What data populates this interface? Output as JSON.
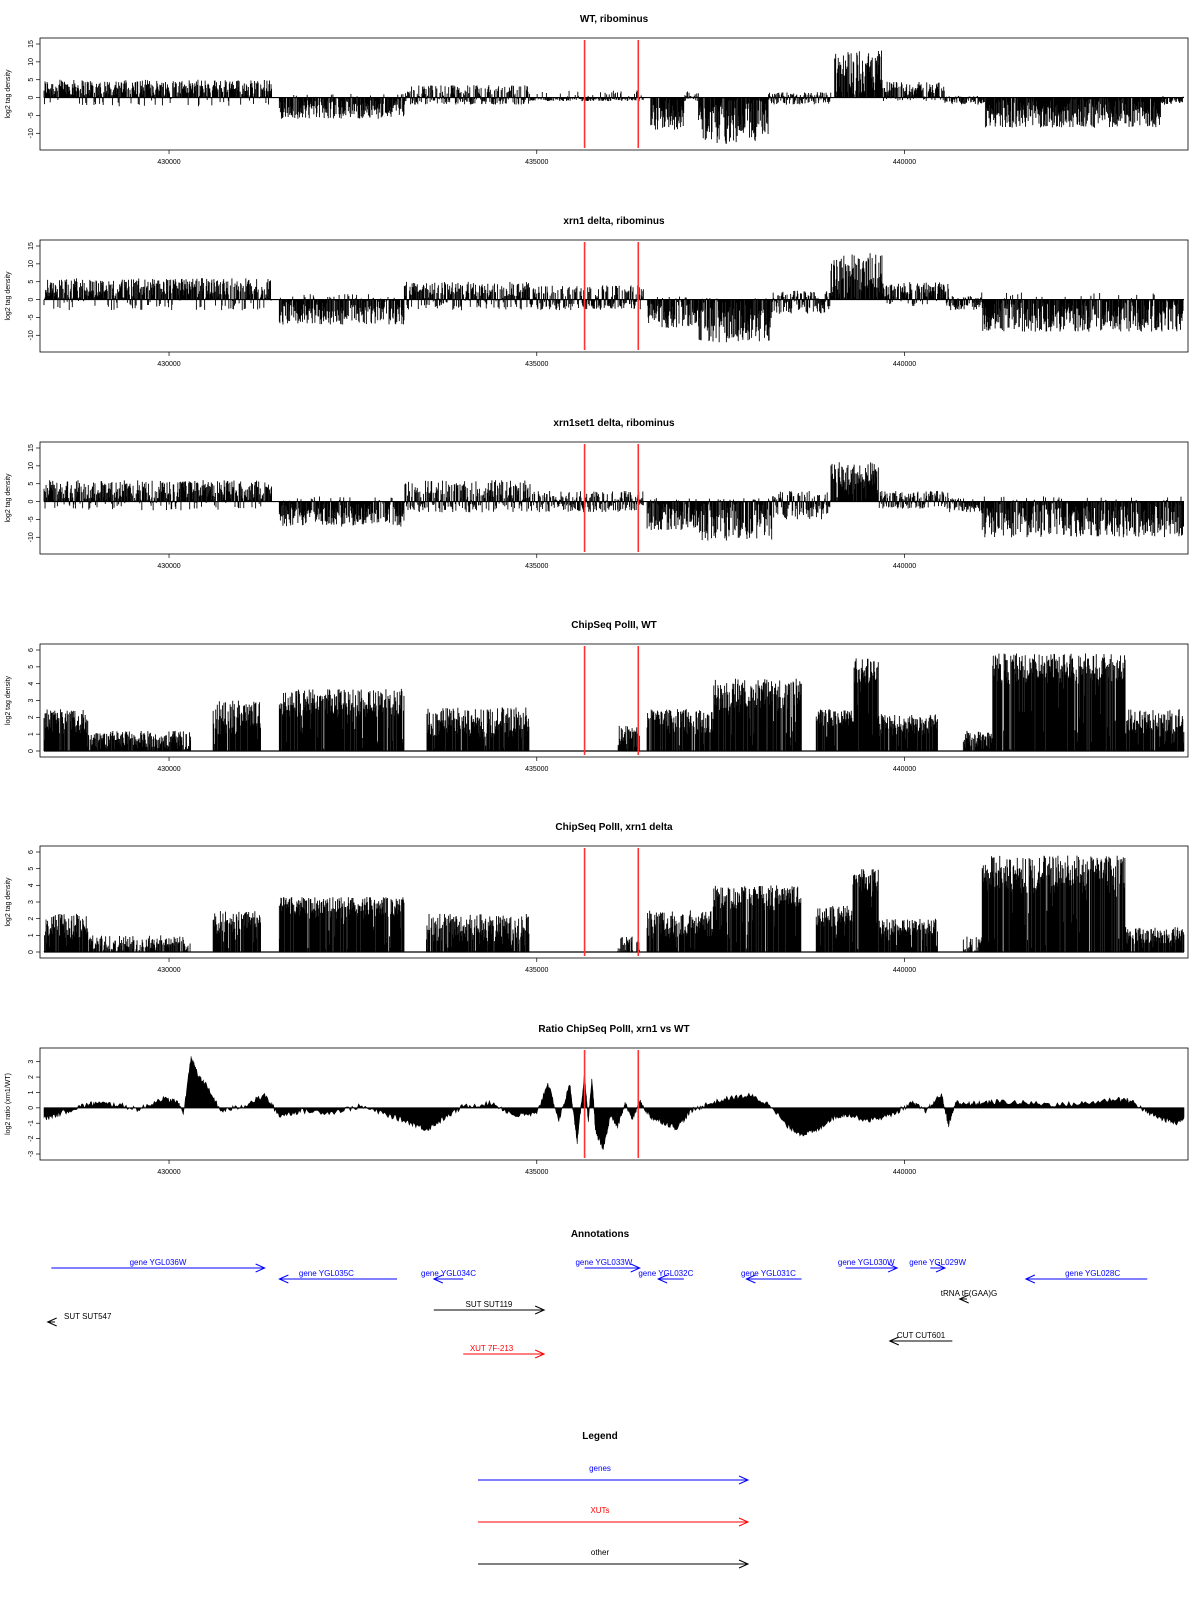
{
  "chart_data": [
    {
      "type": "bar",
      "title": "WT, ribominus",
      "ylabel": "log2 tag density",
      "xlim": [
        428300,
        443800
      ],
      "ylim": [
        -13,
        15
      ],
      "yticks": [
        "-10",
        "-5",
        "0",
        "5",
        "10",
        "15"
      ],
      "xticks": [
        "430000",
        "435000",
        "440000"
      ],
      "highlight_lines_x": [
        435650,
        436380
      ],
      "highlight_color": "#ff3333",
      "profile": [
        {
          "x0": 428300,
          "x1": 431400,
          "lo": -2.5,
          "hi": 5,
          "pos": 0.9
        },
        {
          "x0": 431500,
          "x1": 433200,
          "lo": -6,
          "hi": 1,
          "pos": 0.1
        },
        {
          "x0": 433200,
          "x1": 434900,
          "lo": -2,
          "hi": 3.5,
          "pos": 0.5
        },
        {
          "x0": 434900,
          "x1": 436450,
          "lo": -1,
          "hi": 2,
          "pos": 0.15
        },
        {
          "x0": 436550,
          "x1": 437000,
          "lo": -9,
          "hi": 0,
          "pos": 0
        },
        {
          "x0": 437000,
          "x1": 437200,
          "lo": -1,
          "hi": 2,
          "pos": 0.5
        },
        {
          "x0": 437200,
          "x1": 438150,
          "lo": -13,
          "hi": 0,
          "pos": 0
        },
        {
          "x0": 438150,
          "x1": 439000,
          "lo": -2,
          "hi": 1.5,
          "pos": 0.4
        },
        {
          "x0": 439050,
          "x1": 439700,
          "lo": 0,
          "hi": 13.5,
          "pos": 1
        },
        {
          "x0": 439700,
          "x1": 440550,
          "lo": -1,
          "hi": 4.5,
          "pos": 0.8
        },
        {
          "x0": 440550,
          "x1": 441100,
          "lo": -2,
          "hi": 0.5,
          "pos": 0.2
        },
        {
          "x0": 441100,
          "x1": 443500,
          "lo": -8.5,
          "hi": 0,
          "pos": 0
        },
        {
          "x0": 443500,
          "x1": 443800,
          "lo": -2,
          "hi": 0.5,
          "pos": 0.2
        }
      ]
    },
    {
      "type": "bar",
      "title": "xrn1 delta, ribominus",
      "ylabel": "log2 tag density",
      "xlim": [
        428300,
        443800
      ],
      "ylim": [
        -13,
        15
      ],
      "yticks": [
        "-10",
        "-5",
        "0",
        "5",
        "10",
        "15"
      ],
      "xticks": [
        "430000",
        "435000",
        "440000"
      ],
      "highlight_lines_x": [
        435650,
        436380
      ],
      "highlight_color": "#ff3333",
      "profile": [
        {
          "x0": 428300,
          "x1": 431400,
          "lo": -3,
          "hi": 6,
          "pos": 0.8
        },
        {
          "x0": 431500,
          "x1": 433200,
          "lo": -7,
          "hi": 1.5,
          "pos": 0.1
        },
        {
          "x0": 433200,
          "x1": 435000,
          "lo": -3,
          "hi": 5,
          "pos": 0.7
        },
        {
          "x0": 435000,
          "x1": 436450,
          "lo": -3,
          "hi": 4,
          "pos": 0.4
        },
        {
          "x0": 436500,
          "x1": 437200,
          "lo": -8,
          "hi": 1,
          "pos": 0.1
        },
        {
          "x0": 437200,
          "x1": 438200,
          "lo": -12,
          "hi": 0.5,
          "pos": 0.05
        },
        {
          "x0": 438200,
          "x1": 439000,
          "lo": -4,
          "hi": 2.5,
          "pos": 0.4
        },
        {
          "x0": 439000,
          "x1": 439700,
          "lo": 0,
          "hi": 13,
          "pos": 1
        },
        {
          "x0": 439700,
          "x1": 440600,
          "lo": -2,
          "hi": 5,
          "pos": 0.8
        },
        {
          "x0": 440600,
          "x1": 441050,
          "lo": -3,
          "hi": 1,
          "pos": 0.3
        },
        {
          "x0": 441050,
          "x1": 443800,
          "lo": -9,
          "hi": 2,
          "pos": 0.05
        }
      ]
    },
    {
      "type": "bar",
      "title": "xrn1set1 delta, ribominus",
      "ylabel": "log2 tag density",
      "xlim": [
        428300,
        443800
      ],
      "ylim": [
        -13,
        15
      ],
      "yticks": [
        "-10",
        "-5",
        "0",
        "5",
        "10",
        "15"
      ],
      "xticks": [
        "430000",
        "435000",
        "440000"
      ],
      "highlight_lines_x": [
        435650,
        436380
      ],
      "highlight_color": "#ff3333",
      "profile": [
        {
          "x0": 428300,
          "x1": 431400,
          "lo": -2.5,
          "hi": 6,
          "pos": 0.85
        },
        {
          "x0": 431500,
          "x1": 433200,
          "lo": -7,
          "hi": 1.5,
          "pos": 0.1
        },
        {
          "x0": 433200,
          "x1": 435000,
          "lo": -3,
          "hi": 6,
          "pos": 0.6
        },
        {
          "x0": 435000,
          "x1": 436450,
          "lo": -3,
          "hi": 3,
          "pos": 0.4
        },
        {
          "x0": 436500,
          "x1": 437200,
          "lo": -8,
          "hi": 1,
          "pos": 0.1
        },
        {
          "x0": 437200,
          "x1": 438200,
          "lo": -11,
          "hi": 1,
          "pos": 0.1
        },
        {
          "x0": 438200,
          "x1": 439000,
          "lo": -5,
          "hi": 3,
          "pos": 0.4
        },
        {
          "x0": 439000,
          "x1": 439650,
          "lo": 0,
          "hi": 11,
          "pos": 1
        },
        {
          "x0": 439650,
          "x1": 440600,
          "lo": -2,
          "hi": 3,
          "pos": 0.6
        },
        {
          "x0": 440600,
          "x1": 441050,
          "lo": -3,
          "hi": 1,
          "pos": 0.3
        },
        {
          "x0": 441050,
          "x1": 443800,
          "lo": -10,
          "hi": 1.5,
          "pos": 0.05
        }
      ]
    },
    {
      "type": "bar",
      "title": "ChipSeq PolII, WT",
      "ylabel": "log2 tag density",
      "xlim": [
        428300,
        443800
      ],
      "ylim": [
        0,
        6
      ],
      "yticks": [
        "0",
        "1",
        "2",
        "3",
        "4",
        "5",
        "6"
      ],
      "xticks": [
        "430000",
        "435000",
        "440000"
      ],
      "highlight_lines_x": [
        435650,
        436380
      ],
      "highlight_color": "#ff3333",
      "profile": [
        {
          "x0": 428300,
          "x1": 428900,
          "lo": 0,
          "hi": 2.5,
          "pos": 1,
          "base": 1
        },
        {
          "x0": 428900,
          "x1": 430300,
          "lo": 0,
          "hi": 1.2,
          "pos": 1
        },
        {
          "x0": 430600,
          "x1": 431250,
          "lo": 0,
          "hi": 3,
          "pos": 1,
          "base": 1
        },
        {
          "x0": 431500,
          "x1": 433200,
          "lo": 0,
          "hi": 3.7,
          "pos": 1,
          "base": 2
        },
        {
          "x0": 433500,
          "x1": 434900,
          "lo": 0,
          "hi": 2.6,
          "pos": 1,
          "base": 0.8
        },
        {
          "x0": 436100,
          "x1": 436400,
          "lo": 0,
          "hi": 1.5,
          "pos": 1
        },
        {
          "x0": 436500,
          "x1": 437400,
          "lo": 0,
          "hi": 2.5,
          "pos": 1,
          "base": 1
        },
        {
          "x0": 437400,
          "x1": 438600,
          "lo": 0,
          "hi": 4.3,
          "pos": 1,
          "base": 2.5
        },
        {
          "x0": 438800,
          "x1": 439300,
          "lo": 0,
          "hi": 2.5,
          "pos": 1,
          "base": 1.5
        },
        {
          "x0": 439300,
          "x1": 439650,
          "lo": 0,
          "hi": 5.5,
          "pos": 1,
          "base": 4
        },
        {
          "x0": 439650,
          "x1": 440450,
          "lo": 0,
          "hi": 2.2,
          "pos": 1,
          "base": 1
        },
        {
          "x0": 440800,
          "x1": 441200,
          "lo": 0,
          "hi": 1.2,
          "pos": 1
        },
        {
          "x0": 441200,
          "x1": 443000,
          "lo": 0,
          "hi": 5.8,
          "pos": 1,
          "base": 4
        },
        {
          "x0": 443000,
          "x1": 443800,
          "lo": 0,
          "hi": 2.5,
          "pos": 1,
          "base": 1
        }
      ]
    },
    {
      "type": "bar",
      "title": "ChipSeq PolII, xrn1 delta",
      "ylabel": "log2 tag density",
      "xlim": [
        428300,
        443800
      ],
      "ylim": [
        0,
        6
      ],
      "yticks": [
        "0",
        "1",
        "2",
        "3",
        "4",
        "5",
        "6"
      ],
      "xticks": [
        "430000",
        "435000",
        "440000"
      ],
      "highlight_lines_x": [
        435650,
        436380
      ],
      "highlight_color": "#ff3333",
      "profile": [
        {
          "x0": 428300,
          "x1": 428900,
          "lo": 0,
          "hi": 2.3,
          "pos": 1,
          "base": 0.7
        },
        {
          "x0": 428900,
          "x1": 430300,
          "lo": 0,
          "hi": 1,
          "pos": 0.8
        },
        {
          "x0": 430600,
          "x1": 431250,
          "lo": 0,
          "hi": 2.5,
          "pos": 1,
          "base": 1
        },
        {
          "x0": 431500,
          "x1": 433200,
          "lo": 0,
          "hi": 3.3,
          "pos": 1,
          "base": 2
        },
        {
          "x0": 433500,
          "x1": 434900,
          "lo": 0,
          "hi": 2.3,
          "pos": 1,
          "base": 0.6
        },
        {
          "x0": 436100,
          "x1": 436400,
          "lo": 0,
          "hi": 1,
          "pos": 0.6
        },
        {
          "x0": 436500,
          "x1": 437400,
          "lo": 0,
          "hi": 2.5,
          "pos": 1,
          "base": 0.8
        },
        {
          "x0": 437400,
          "x1": 438600,
          "lo": 0,
          "hi": 4,
          "pos": 1,
          "base": 2.5
        },
        {
          "x0": 438800,
          "x1": 439300,
          "lo": 0,
          "hi": 2.8,
          "pos": 1,
          "base": 1.5
        },
        {
          "x0": 439300,
          "x1": 439650,
          "lo": 0,
          "hi": 5,
          "pos": 1,
          "base": 3.5
        },
        {
          "x0": 439650,
          "x1": 440450,
          "lo": 0,
          "hi": 2,
          "pos": 1,
          "base": 1
        },
        {
          "x0": 440800,
          "x1": 441050,
          "lo": 0,
          "hi": 1,
          "pos": 0.7
        },
        {
          "x0": 441050,
          "x1": 443000,
          "lo": 0,
          "hi": 5.8,
          "pos": 1,
          "base": 3.5
        },
        {
          "x0": 443000,
          "x1": 443800,
          "lo": 0,
          "hi": 1.5,
          "pos": 1,
          "base": 0.5
        }
      ]
    },
    {
      "type": "area",
      "title": "Ratio ChipSeq PolII, xrn1 vs WT",
      "ylabel": "log2 ratio (xrn1/WT)",
      "xlim": [
        428300,
        443800
      ],
      "ylim": [
        -3,
        3.5
      ],
      "yticks": [
        "-3",
        "-2",
        "-1",
        "0",
        "1",
        "2",
        "3"
      ],
      "xticks": [
        "430000",
        "435000",
        "440000"
      ],
      "highlight_lines_x": [
        435650,
        436380
      ],
      "highlight_color": "#ff3333",
      "x": [
        428300,
        428500,
        428800,
        429000,
        429300,
        429600,
        429900,
        430100,
        430200,
        430300,
        430400,
        430500,
        430700,
        431000,
        431300,
        431500,
        431800,
        432200,
        432600,
        433000,
        433300,
        433500,
        433700,
        434000,
        434400,
        434700,
        435000,
        435150,
        435300,
        435450,
        435550,
        435650,
        435700,
        435750,
        435800,
        435900,
        436000,
        436100,
        436200,
        436300,
        436400,
        436550,
        436700,
        436900,
        437100,
        437300,
        437600,
        437900,
        438200,
        438400,
        438600,
        438800,
        439000,
        439200,
        439500,
        439800,
        440100,
        440300,
        440500,
        440600,
        440700,
        440800,
        441000,
        441300,
        441700,
        442100,
        442500,
        442900,
        443100,
        443300,
        443500,
        443700,
        443800
      ],
      "y": [
        -0.7,
        -0.4,
        0.1,
        0.3,
        0.2,
        -0.1,
        0.6,
        0.4,
        -0.3,
        3.3,
        2.0,
        1.5,
        -0.2,
        0.1,
        0.8,
        -0.5,
        -0.2,
        -0.3,
        0.1,
        -0.5,
        -1.0,
        -1.4,
        -0.8,
        0.1,
        0.3,
        -0.5,
        -0.4,
        1.6,
        -0.8,
        1.5,
        -2.2,
        2.2,
        -1.0,
        1.9,
        -1.5,
        -2.7,
        -0.5,
        -1.2,
        0.3,
        -0.7,
        0.4,
        -0.6,
        -0.9,
        -1.3,
        -0.2,
        0.2,
        0.6,
        0.8,
        0.1,
        -1.2,
        -1.7,
        -1.5,
        -0.7,
        -0.4,
        -0.8,
        -0.5,
        0.3,
        -0.2,
        0.9,
        -1.1,
        0.4,
        0.2,
        0.3,
        0.4,
        0.3,
        0.2,
        0.3,
        0.6,
        0.4,
        -0.3,
        -0.7,
        -1.0,
        -0.6
      ]
    }
  ],
  "annotations_panel": {
    "title": "Annotations",
    "xlim": [
      428300,
      443800
    ],
    "items": [
      {
        "label": "gene YGL036W",
        "color": "#0000ff",
        "x0": 428400,
        "x1": 431300,
        "row": 0,
        "dir": "right",
        "label_pos": 0.5
      },
      {
        "label": "gene YGL035C",
        "color": "#0000ff",
        "x0": 431500,
        "x1": 433100,
        "row": 1,
        "dir": "left",
        "label_pos": 0.4
      },
      {
        "label": "gene YGL034C",
        "color": "#0000ff",
        "x0": 433600,
        "x1": 434000,
        "row": 1,
        "dir": "left",
        "label_pos": 0.5
      },
      {
        "label": "gene YGL033W",
        "color": "#0000ff",
        "x0": 435650,
        "x1": 436400,
        "row": 0,
        "dir": "right",
        "label_pos": 0.35
      },
      {
        "label": "gene YGL032C",
        "color": "#0000ff",
        "x0": 436650,
        "x1": 437000,
        "row": 1,
        "dir": "left",
        "label_pos": 0.3
      },
      {
        "label": "gene YGL031C",
        "color": "#0000ff",
        "x0": 437850,
        "x1": 438600,
        "row": 1,
        "dir": "left",
        "label_pos": 0.4
      },
      {
        "label": "gene YGL030W",
        "color": "#0000ff",
        "x0": 439200,
        "x1": 439900,
        "row": 0,
        "dir": "right",
        "label_pos": 0.4
      },
      {
        "label": "gene YGL029W",
        "color": "#0000ff",
        "x0": 440350,
        "x1": 440550,
        "row": 0,
        "dir": "right",
        "label_pos": 0.5
      },
      {
        "label": "gene YGL028C",
        "color": "#0000ff",
        "x0": 441650,
        "x1": 443300,
        "row": 1,
        "dir": "left",
        "label_pos": 0.55
      },
      {
        "label": "tRNA tF(GAA)G",
        "color": "#000000",
        "x0": 440750,
        "x1": 440850,
        "row": 2,
        "dir": "left",
        "label_pos": 0.5
      },
      {
        "label": "SUT SUT547",
        "color": "#000000",
        "x0": 428350,
        "x1": 428450,
        "row": 3,
        "dir": "left",
        "label_pos": 0.5
      },
      {
        "label": "SUT SUT119",
        "color": "#000000",
        "x0": 433600,
        "x1": 435100,
        "row": 2.6,
        "dir": "right",
        "label_pos": 0.5
      },
      {
        "label": "CUT CUT601",
        "color": "#000000",
        "x0": 439800,
        "x1": 440650,
        "row": 4,
        "dir": "left",
        "label_pos": 0.5
      },
      {
        "label": "XUT 7F-213",
        "color": "#ff0000",
        "x0": 434000,
        "x1": 435100,
        "row": 5,
        "dir": "right",
        "label_pos": 0.35
      }
    ]
  },
  "legend_panel": {
    "title": "Legend",
    "items": [
      {
        "label": "genes",
        "color": "#0000ff"
      },
      {
        "label": "XUTs",
        "color": "#ff0000"
      },
      {
        "label": "other",
        "color": "#000000"
      }
    ]
  }
}
